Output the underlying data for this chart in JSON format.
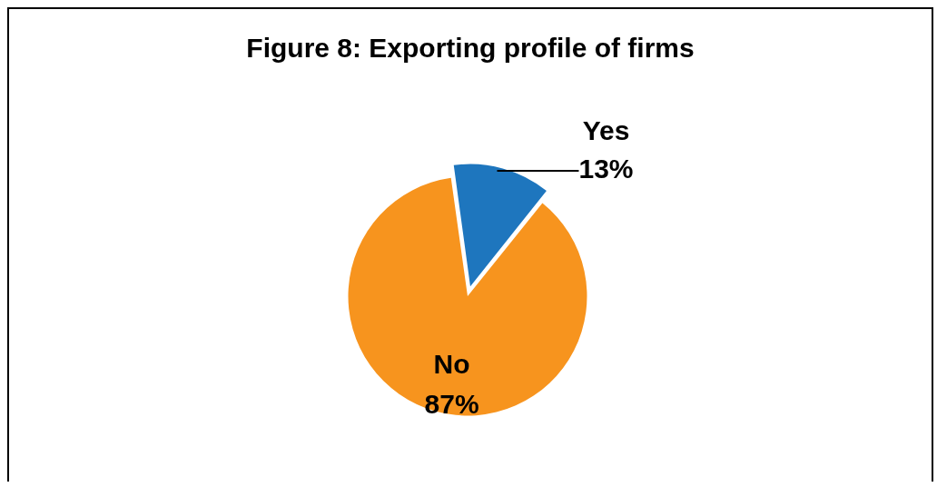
{
  "chart_data": {
    "type": "pie",
    "title": "Figure 8: Exporting profile of firms",
    "categories": [
      "Yes",
      "No"
    ],
    "values": [
      13,
      87
    ],
    "colors": [
      "#1e76be",
      "#f7941e"
    ],
    "value_labels": [
      "13%",
      "87%"
    ],
    "legend": false
  }
}
